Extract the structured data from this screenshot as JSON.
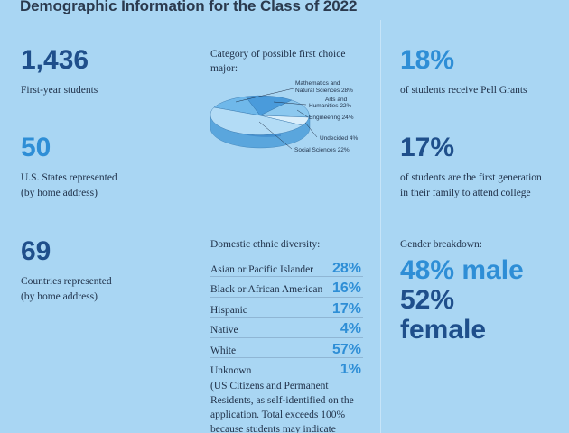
{
  "title": "Demographic Information for the Class of 2022",
  "stats": {
    "first_year": {
      "value": "1,436",
      "label": "First-year students"
    },
    "states": {
      "value": "50",
      "label_line1": "U.S. States represented",
      "label_line2": "(by home address)"
    },
    "countries": {
      "value": "69",
      "label_line1": "Countries represented",
      "label_line2": "(by home address)"
    },
    "pell": {
      "value": "18%",
      "label": "of students receive Pell Grants"
    },
    "first_gen": {
      "value": "17%",
      "label_line1": "of students are the first generation",
      "label_line2": "in their family to attend college"
    }
  },
  "major_chart": {
    "title_line1": "Category of possible first choice",
    "title_line2": "major:",
    "labels": {
      "math_line1": "Mathematics and",
      "math_line2": "Natural Sciences 28%",
      "arts_line1": "Arts and",
      "arts_line2": "Humanities 22%",
      "eng": "Engineering 24%",
      "undecided": "Undecided 4%",
      "social": "Social Sciences 22%"
    },
    "colors": {
      "math": "#6fb8ea",
      "arts": "#4a9bdb",
      "eng": "#8cc8ef",
      "undecided": "#d9eefb",
      "social": "#b3dcf6"
    }
  },
  "chart_data": {
    "type": "pie",
    "title": "Category of possible first choice major:",
    "categories": [
      "Mathematics and Natural Sciences",
      "Arts and Humanities",
      "Engineering",
      "Undecided",
      "Social Sciences"
    ],
    "values": [
      28,
      22,
      24,
      4,
      22
    ],
    "unit": "%"
  },
  "ethnic": {
    "title": "Domestic ethnic diversity:",
    "rows": [
      {
        "name": "Asian or Pacific Islander",
        "pct": "28%"
      },
      {
        "name": "Black or African American",
        "pct": "16%"
      },
      {
        "name": "Hispanic",
        "pct": "17%"
      },
      {
        "name": "Native",
        "pct": "4%"
      },
      {
        "name": "White",
        "pct": "57%"
      },
      {
        "name": "Unknown",
        "pct": "1%"
      }
    ],
    "note_line1": "(US Citizens and Permanent",
    "note_line2": "Residents, as self-identified on the",
    "note_line3": "application. Total exceeds 100%",
    "note_line4": "because students may indicate"
  },
  "gender": {
    "title": "Gender breakdown:",
    "male": "48% male",
    "female": "52% female"
  }
}
